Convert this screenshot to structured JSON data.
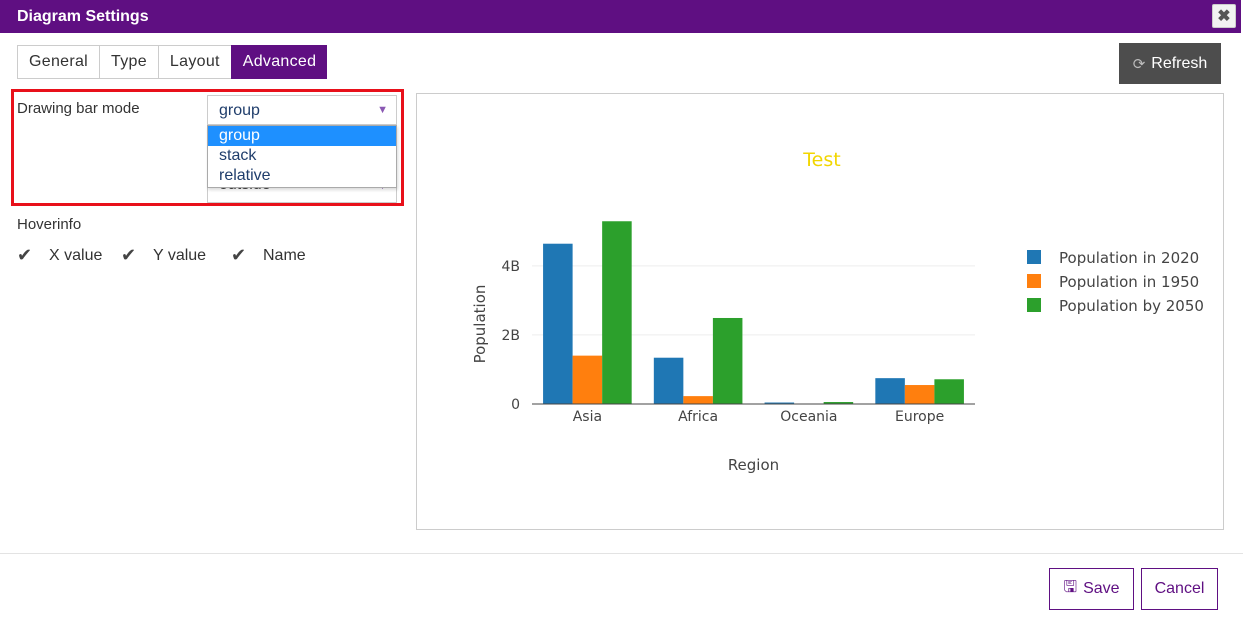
{
  "window": {
    "title": "Diagram Settings",
    "close_glyph": "✖"
  },
  "tabs": [
    {
      "label": "General"
    },
    {
      "label": "Type"
    },
    {
      "label": "Layout"
    },
    {
      "label": "Advanced",
      "active": true
    }
  ],
  "refresh": {
    "label": "Refresh",
    "icon": "refresh-icon"
  },
  "advanced": {
    "bar_mode_label": "Drawing bar mode",
    "bar_mode_value": "group",
    "bar_mode_options": [
      "group",
      "stack",
      "relative"
    ],
    "text_position_value": "outside",
    "hoverinfo_label": "Hoverinfo",
    "hoverinfo_options": [
      {
        "label": "X value",
        "checked": true
      },
      {
        "label": "Y value",
        "checked": true
      },
      {
        "label": "Name",
        "checked": true
      }
    ]
  },
  "footer": {
    "save_label": "Save",
    "cancel_label": "Cancel"
  },
  "colors": {
    "accent": "#5f0f82",
    "highlight_border": "#e8101a",
    "dropdown_selected": "#1e90ff"
  },
  "chart_data": {
    "type": "bar",
    "barmode": "group",
    "title": "Test",
    "title_color": "#f2d600",
    "xlabel": "Region",
    "ylabel": "Population",
    "categories": [
      "Asia",
      "Africa",
      "Oceania",
      "Europe"
    ],
    "ylim": [
      0,
      5500000000
    ],
    "yticks": [
      {
        "value": 0,
        "label": "0"
      },
      {
        "value": 2000000000,
        "label": "2B"
      },
      {
        "value": 4000000000,
        "label": "4B"
      }
    ],
    "grid": true,
    "legend_position": "right",
    "series": [
      {
        "name": "Population in 2020",
        "color": "#1f77b4",
        "values": [
          4640000000,
          1340000000,
          43000000,
          748000000
        ]
      },
      {
        "name": "Population in 1950",
        "color": "#ff7f0e",
        "values": [
          1400000000,
          228000000,
          12000000,
          549000000
        ]
      },
      {
        "name": "Population by 2050",
        "color": "#2ca02c",
        "values": [
          5290000000,
          2490000000,
          57000000,
          716000000
        ]
      }
    ]
  }
}
